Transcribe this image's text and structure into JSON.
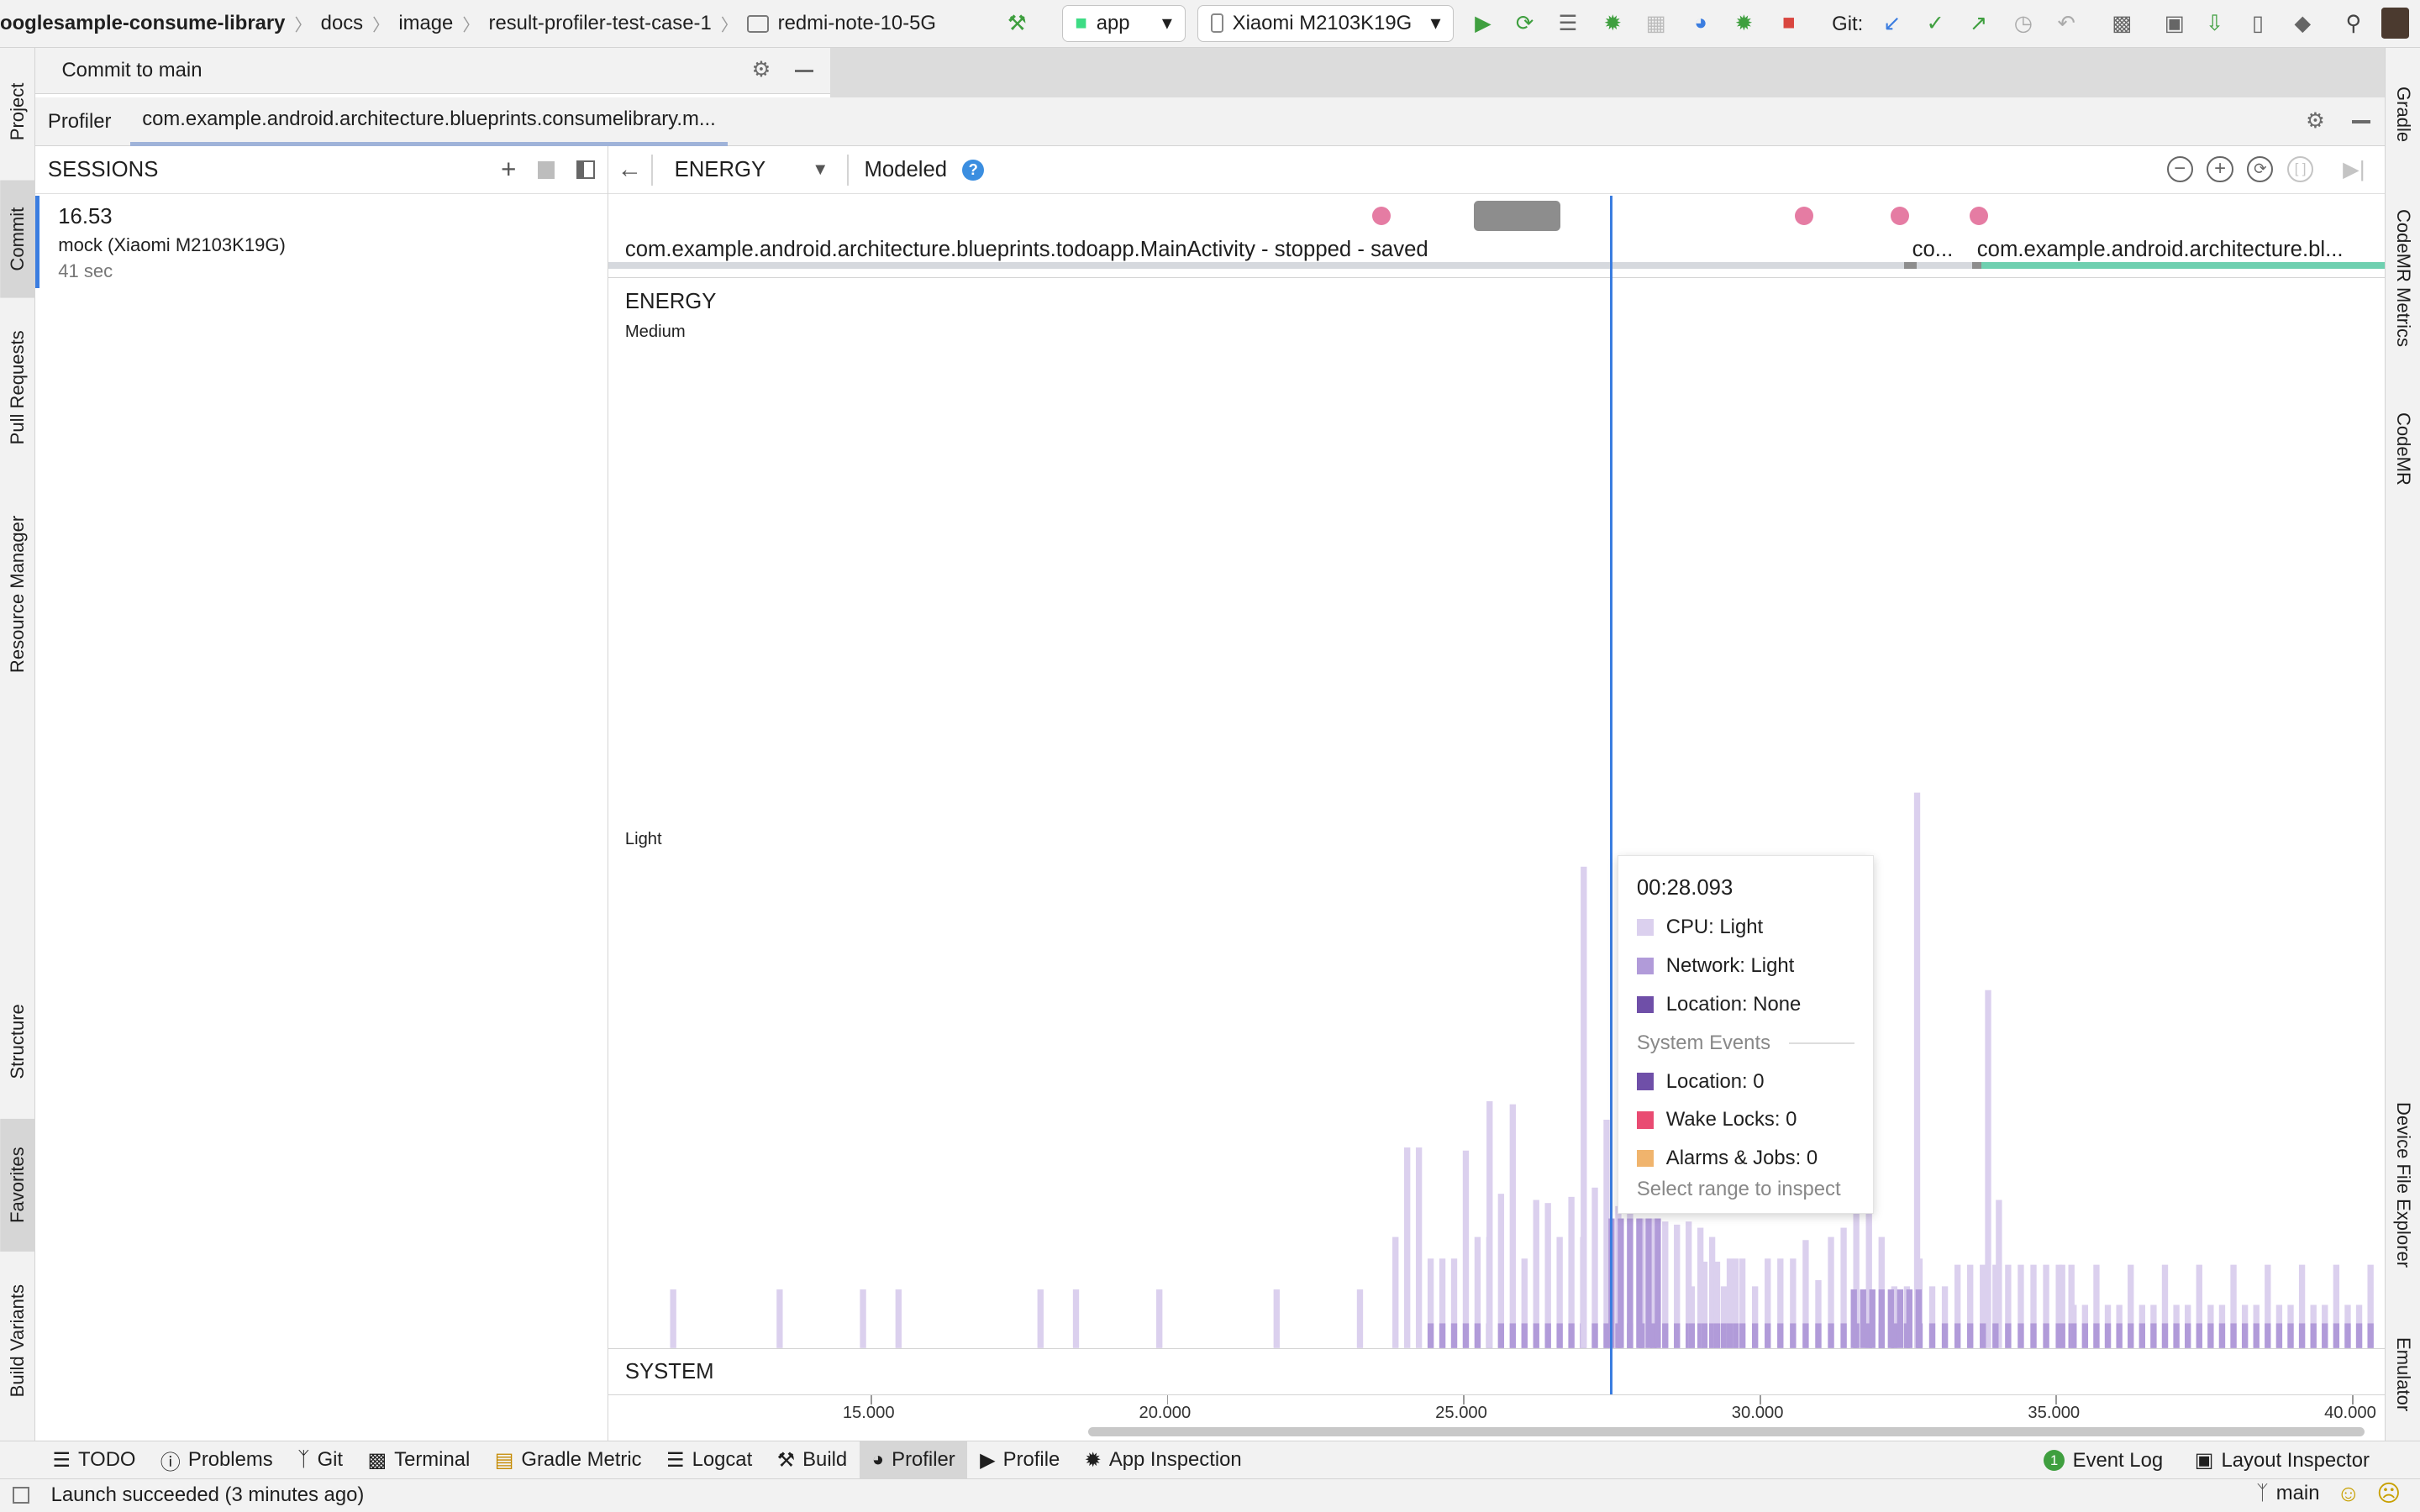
{
  "breadcrumbs": [
    "ooglesample-consume-library",
    "docs",
    "image",
    "result-profiler-test-case-1",
    "redmi-note-10-5G"
  ],
  "toolbar": {
    "run_config": "app",
    "device": "Xiaomi M2103K19G",
    "git_label": "Git:"
  },
  "commit_panel": {
    "title": "Commit to main"
  },
  "left_tabs": [
    "Project",
    "Commit",
    "Pull Requests",
    "Resource Manager",
    "Structure",
    "Favorites",
    "Build Variants"
  ],
  "right_tabs": [
    "Gradle",
    "CodeMR Metrics",
    "CodeMR",
    "Device File Explorer",
    "Emulator"
  ],
  "profiler_tabs": {
    "profiler": "Profiler",
    "process": "com.example.android.architecture.blueprints.consumelibrary.m..."
  },
  "sessions": {
    "title": "SESSIONS",
    "items": [
      {
        "name": "16.53",
        "device": "mock (Xiaomi M2103K19G)",
        "duration": "41 sec"
      }
    ]
  },
  "profiler_toolbar": {
    "monitor": "ENERGY",
    "mode": "Modeled"
  },
  "events": {
    "activity_main": "com.example.android.architecture.blueprints.todoapp.MainActivity - stopped - saved",
    "activity_short": "co...",
    "activity_next": "com.example.android.architecture.bl..."
  },
  "energy": {
    "title": "ENERGY",
    "level_medium": "Medium",
    "level_light": "Light",
    "system_label": "SYSTEM"
  },
  "tooltip": {
    "time": "00:28.093",
    "cpu": "CPU: Light",
    "network": "Network: Light",
    "location": "Location: None",
    "system_events": "System Events",
    "sys_location": "Location: 0",
    "wake_locks": "Wake Locks: 0",
    "alarms_jobs": "Alarms & Jobs: 0",
    "hint": "Select range to inspect"
  },
  "colors": {
    "cpu": "#dbd0ee",
    "network": "#b19bd9",
    "location": "#6f4fa8",
    "wake_locks": "#e94b72",
    "alarms_jobs": "#f0b46d",
    "cursor": "#3b7de0",
    "event_dot": "#e57ca3"
  },
  "time_axis": {
    "ticks": [
      "15.000",
      "20.000",
      "25.000",
      "30.000",
      "35.000",
      "40.000"
    ]
  },
  "bottom_tools": [
    "TODO",
    "Problems",
    "Git",
    "Terminal",
    "Gradle Metric",
    "Logcat",
    "Build",
    "Profiler",
    "Profile",
    "App Inspection"
  ],
  "bottom_right": {
    "event_log": "Event Log",
    "event_log_count": "1",
    "layout_inspector": "Layout Inspector"
  },
  "status": {
    "message": "Launch succeeded (3 minutes ago)",
    "branch": "main"
  }
}
